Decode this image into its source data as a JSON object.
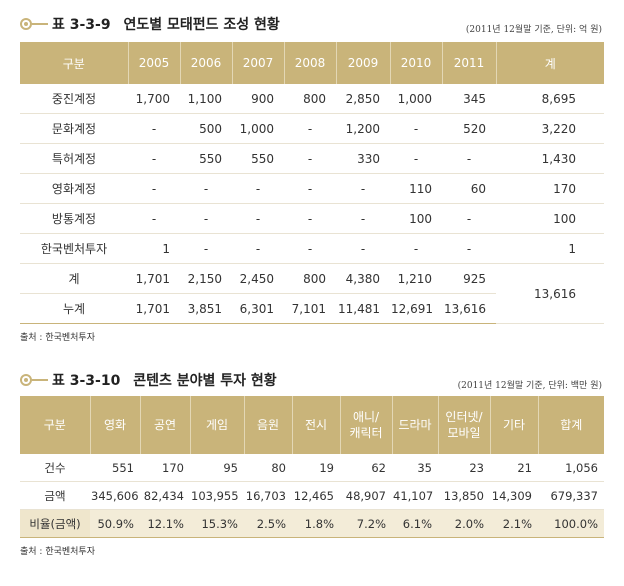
{
  "table1": {
    "number": "표 3-3-9",
    "title": "연도별 모태펀드 조성 현황",
    "unit_note": "(2011년 12월말 기준, 단위: 억 원)",
    "headers": [
      "구분",
      "2005",
      "2006",
      "2007",
      "2008",
      "2009",
      "2010",
      "2011",
      "계"
    ],
    "rows": [
      {
        "label": "중진계정",
        "values": [
          "1,700",
          "1,100",
          "900",
          "800",
          "2,850",
          "1,000",
          "345"
        ],
        "total": "8,695"
      },
      {
        "label": "문화계정",
        "values": [
          "-",
          "500",
          "1,000",
          "-",
          "1,200",
          "-",
          "520"
        ],
        "total": "3,220"
      },
      {
        "label": "특허계정",
        "values": [
          "-",
          "550",
          "550",
          "-",
          "330",
          "-",
          "-"
        ],
        "total": "1,430"
      },
      {
        "label": "영화계정",
        "values": [
          "-",
          "-",
          "-",
          "-",
          "-",
          "110",
          "60"
        ],
        "total": "170"
      },
      {
        "label": "방통계정",
        "values": [
          "-",
          "-",
          "-",
          "-",
          "-",
          "100",
          "-"
        ],
        "total": "100"
      },
      {
        "label": "한국벤처투자",
        "values": [
          "1",
          "-",
          "-",
          "-",
          "-",
          "-",
          "-"
        ],
        "total": "1"
      },
      {
        "label": "계",
        "values": [
          "1,701",
          "2,150",
          "2,450",
          "800",
          "4,380",
          "1,210",
          "925"
        ]
      },
      {
        "label": "누계",
        "values": [
          "1,701",
          "3,851",
          "6,301",
          "7,101",
          "11,481",
          "12,691",
          "13,616"
        ]
      }
    ],
    "merged_total": "13,616",
    "source": "출처 : 한국벤처투자"
  },
  "table2": {
    "number": "표 3-3-10",
    "title": "콘텐츠 분야별 투자 현황",
    "unit_note": "(2011년 12월말 기준, 단위: 백만 원)",
    "headers": [
      "구분",
      "영화",
      "공연",
      "게임",
      "음원",
      "전시",
      "애니/\n캐릭터",
      "드라마",
      "인터넷/\n모바일",
      "기타",
      "합계"
    ],
    "rows": [
      {
        "label": "건수",
        "values": [
          "551",
          "170",
          "95",
          "80",
          "19",
          "62",
          "35",
          "23",
          "21",
          "1,056"
        ]
      },
      {
        "label": "금액",
        "values": [
          "345,606",
          "82,434",
          "103,955",
          "16,703",
          "12,465",
          "48,907",
          "41,107",
          "13,850",
          "14,309",
          "679,337"
        ]
      },
      {
        "label": "비율(금액)",
        "values": [
          "50.9%",
          "12.1%",
          "15.3%",
          "2.5%",
          "1.8%",
          "7.2%",
          "6.1%",
          "2.0%",
          "2.1%",
          "100.0%"
        ]
      }
    ],
    "source": "출처 : 한국벤처투자"
  }
}
